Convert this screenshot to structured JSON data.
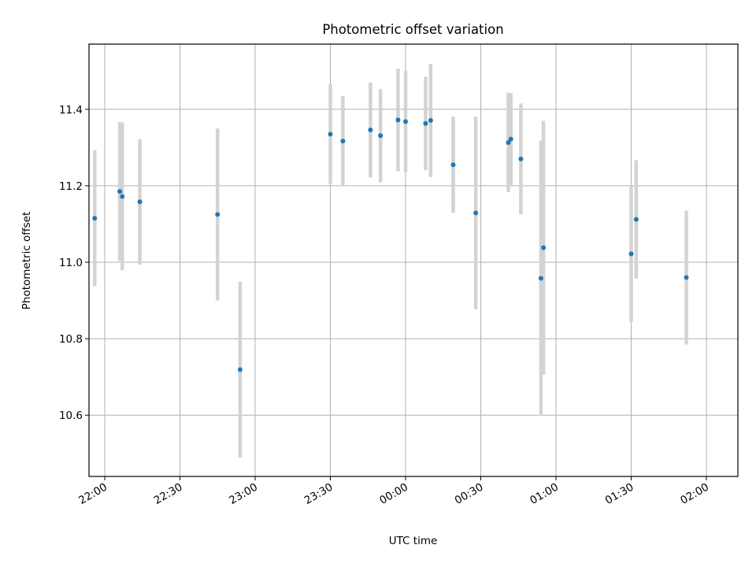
{
  "chart_data": {
    "type": "scatter",
    "title": "Photometric offset variation",
    "xlabel": "UTC time",
    "ylabel": "Photometric offset",
    "x_tick_labels": [
      "22:00",
      "22:30",
      "23:00",
      "23:30",
      "00:00",
      "00:30",
      "01:00",
      "01:30",
      "02:00"
    ],
    "y_ticks": [
      10.6,
      10.8,
      11.0,
      11.2,
      11.4
    ],
    "y_tick_labels": [
      "10.6",
      "10.8",
      "11.0",
      "11.2",
      "11.4"
    ],
    "xlim": [
      "21:53",
      "02:02"
    ],
    "ylim": [
      10.44,
      11.57
    ],
    "grid": true,
    "marker_color": "#1f77b4",
    "errorbar_color": "#d3d3d3",
    "points": [
      {
        "time": "21:56",
        "y": 11.115,
        "err": 0.178
      },
      {
        "time": "22:06",
        "y": 11.185,
        "err": 0.182
      },
      {
        "time": "22:07",
        "y": 11.172,
        "err": 0.193
      },
      {
        "time": "22:14",
        "y": 11.158,
        "err": 0.164
      },
      {
        "time": "22:45",
        "y": 11.125,
        "err": 0.225
      },
      {
        "time": "22:54",
        "y": 10.719,
        "err": 0.23
      },
      {
        "time": "23:30",
        "y": 11.335,
        "err": 0.13
      },
      {
        "time": "23:35",
        "y": 11.317,
        "err": 0.118
      },
      {
        "time": "23:46",
        "y": 11.346,
        "err": 0.124
      },
      {
        "time": "23:50",
        "y": 11.331,
        "err": 0.122
      },
      {
        "time": "23:57",
        "y": 11.372,
        "err": 0.134
      },
      {
        "time": "00:00",
        "y": 11.368,
        "err": 0.132
      },
      {
        "time": "00:08",
        "y": 11.363,
        "err": 0.122
      },
      {
        "time": "00:10",
        "y": 11.371,
        "err": 0.148
      },
      {
        "time": "00:19",
        "y": 11.255,
        "err": 0.126
      },
      {
        "time": "00:28",
        "y": 11.129,
        "err": 0.252
      },
      {
        "time": "00:41",
        "y": 11.313,
        "err": 0.13
      },
      {
        "time": "00:42",
        "y": 11.322,
        "err": 0.12
      },
      {
        "time": "00:46",
        "y": 11.27,
        "err": 0.145
      },
      {
        "time": "00:54",
        "y": 10.958,
        "err": 0.36
      },
      {
        "time": "00:55",
        "y": 11.038,
        "err": 0.332
      },
      {
        "time": "01:30",
        "y": 11.022,
        "err": 0.178
      },
      {
        "time": "01:32",
        "y": 11.112,
        "err": 0.155
      },
      {
        "time": "01:52",
        "y": 10.96,
        "err": 0.175
      }
    ]
  }
}
